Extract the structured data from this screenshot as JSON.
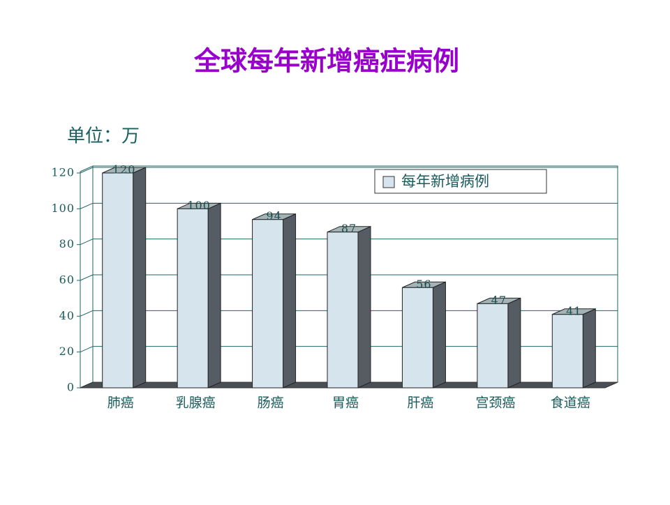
{
  "chart_data": {
    "type": "bar",
    "title": "全球每年新增癌症病例",
    "subtitle": "单位：万",
    "categories": [
      "肺癌",
      "乳腺癌",
      "肠癌",
      "胃癌",
      "肝癌",
      "宫颈癌",
      "食道癌"
    ],
    "series": [
      {
        "name": "每年新增病例",
        "color": "#d6e4ee",
        "values": [
          120,
          100,
          94,
          87,
          56,
          47,
          41
        ]
      }
    ],
    "ylim": [
      0,
      120
    ],
    "yticks": [
      0,
      20,
      40,
      60,
      80,
      100,
      120
    ],
    "grid": true,
    "legend": "top-right"
  }
}
